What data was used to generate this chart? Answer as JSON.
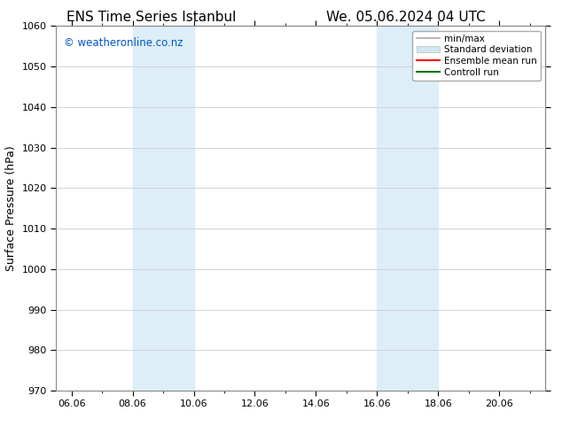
{
  "title_left": "ENS Time Series Istanbul",
  "title_right": "We. 05.06.2024 04 UTC",
  "ylabel": "Surface Pressure (hPa)",
  "ylim": [
    970,
    1060
  ],
  "yticks": [
    970,
    980,
    990,
    1000,
    1010,
    1020,
    1030,
    1040,
    1050,
    1060
  ],
  "xlim_start": 5.5,
  "xlim_end": 21.5,
  "xtick_labels": [
    "06.06",
    "08.06",
    "10.06",
    "12.06",
    "14.06",
    "16.06",
    "18.06",
    "20.06"
  ],
  "xtick_positions": [
    6.0,
    8.0,
    10.0,
    12.0,
    14.0,
    16.0,
    18.0,
    20.0
  ],
  "shaded_regions": [
    {
      "x_start": 8.0,
      "x_end": 10.0,
      "color": "#ddeef8"
    },
    {
      "x_start": 16.0,
      "x_end": 18.0,
      "color": "#ddeef8"
    }
  ],
  "watermark_text": "© weatheronline.co.nz",
  "watermark_color": "#0055cc",
  "watermark_fontsize": 8.5,
  "legend_entries": [
    {
      "label": "min/max",
      "color": "#aaaaaa",
      "lw": 1.2,
      "style": "solid"
    },
    {
      "label": "Standard deviation",
      "color": "#d0e8f0",
      "lw": 6,
      "style": "solid"
    },
    {
      "label": "Ensemble mean run",
      "color": "#ff0000",
      "lw": 1.5,
      "style": "solid"
    },
    {
      "label": "Controll run",
      "color": "#007700",
      "lw": 1.5,
      "style": "solid"
    }
  ],
  "background_color": "#ffffff",
  "grid_color": "#cccccc",
  "title_fontsize": 11,
  "axis_fontsize": 8,
  "ylabel_fontsize": 9
}
